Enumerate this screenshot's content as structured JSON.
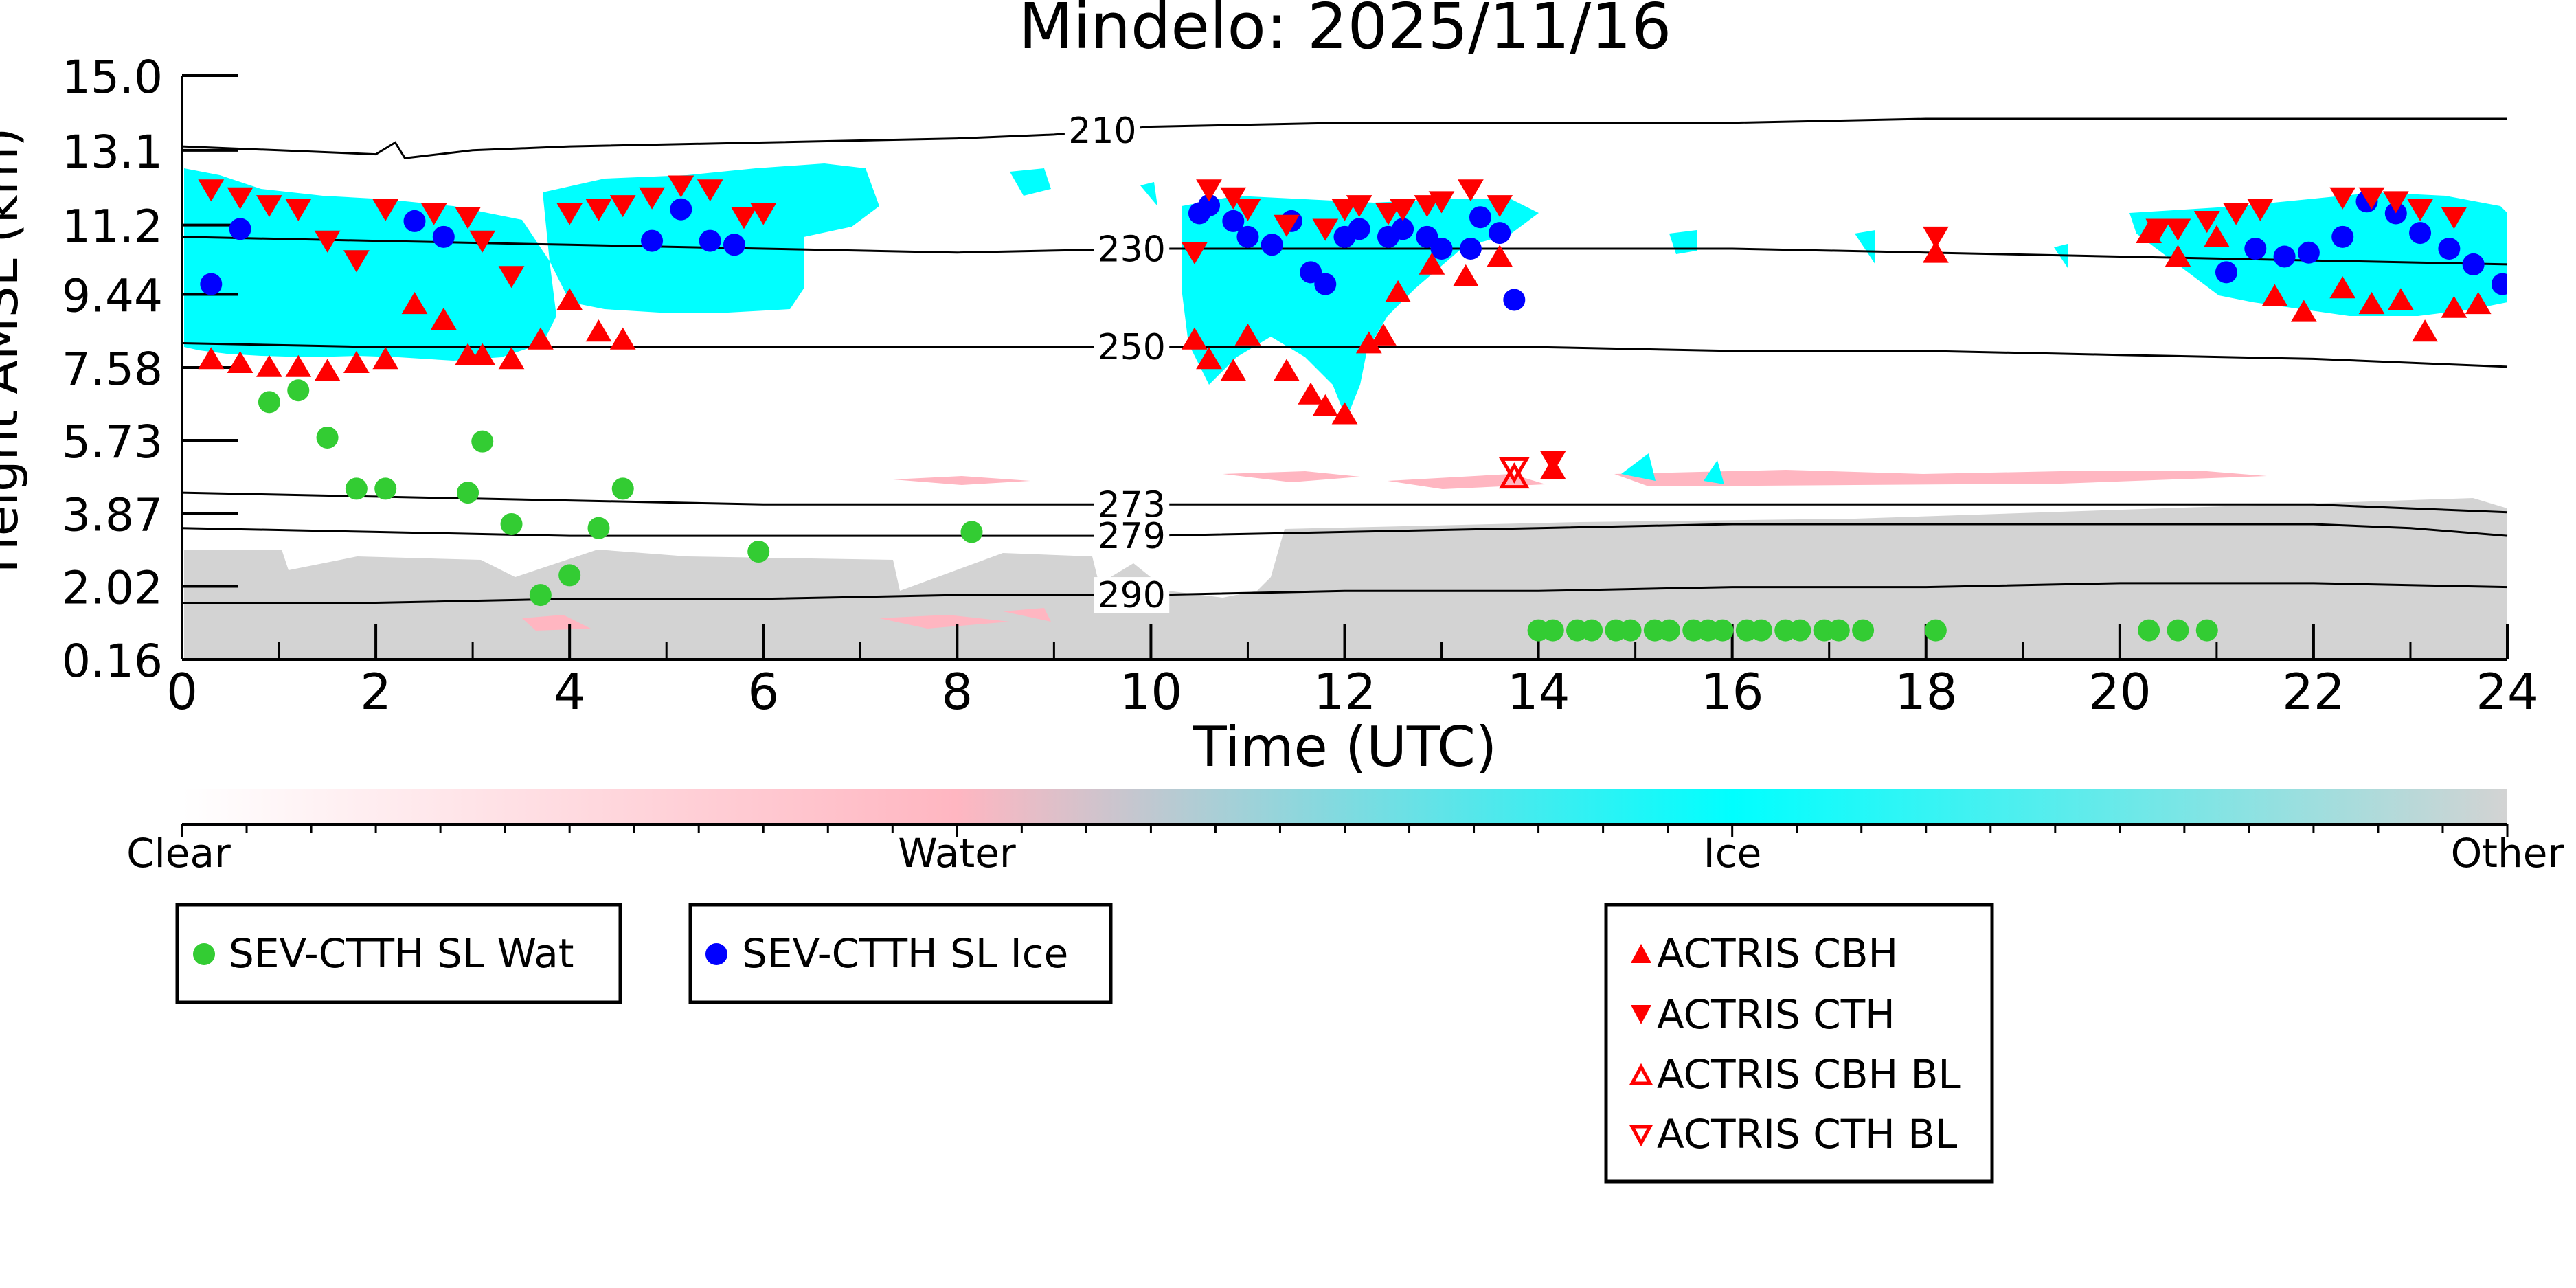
{
  "chart_data": {
    "type": "scatter",
    "title": "Mindelo: 2025/11/16",
    "xlabel": "Time (UTC)",
    "ylabel": "Height AMSL (km)",
    "xlim": [
      0,
      24
    ],
    "ylim": [
      0.16,
      15.0
    ],
    "x_ticks": [
      "0",
      "2",
      "4",
      "6",
      "8",
      "10",
      "12",
      "14",
      "16",
      "18",
      "20",
      "22",
      "24"
    ],
    "y_ticks": [
      "15.0",
      "13.1",
      "11.2",
      "9.44",
      "7.58",
      "5.73",
      "3.87",
      "2.02",
      "0.16"
    ],
    "y_tick_values": [
      15.0,
      13.1,
      11.2,
      9.44,
      7.58,
      5.73,
      3.87,
      2.02,
      0.16
    ],
    "contours": [
      {
        "label": "210",
        "label_x": 9.5,
        "points": [
          [
            0,
            13.2
          ],
          [
            1,
            13.1
          ],
          [
            2,
            13.0
          ],
          [
            2.2,
            13.3
          ],
          [
            2.3,
            12.9
          ],
          [
            3,
            13.1
          ],
          [
            4,
            13.2
          ],
          [
            6,
            13.3
          ],
          [
            8,
            13.4
          ],
          [
            9,
            13.5
          ],
          [
            10,
            13.7
          ],
          [
            12,
            13.8
          ],
          [
            14,
            13.8
          ],
          [
            16,
            13.8
          ],
          [
            18,
            13.9
          ],
          [
            20,
            13.9
          ],
          [
            22,
            13.9
          ],
          [
            24,
            13.9
          ]
        ]
      },
      {
        "label": "230",
        "label_x": 9.8,
        "points": [
          [
            0,
            10.9
          ],
          [
            2,
            10.8
          ],
          [
            4,
            10.7
          ],
          [
            6,
            10.6
          ],
          [
            8,
            10.5
          ],
          [
            10,
            10.6
          ],
          [
            12,
            10.6
          ],
          [
            14,
            10.6
          ],
          [
            16,
            10.6
          ],
          [
            18,
            10.5
          ],
          [
            20,
            10.4
          ],
          [
            22,
            10.3
          ],
          [
            24,
            10.2
          ]
        ]
      },
      {
        "label": "250",
        "label_x": 9.8,
        "points": [
          [
            0,
            8.2
          ],
          [
            2,
            8.1
          ],
          [
            4,
            8.1
          ],
          [
            6,
            8.1
          ],
          [
            8,
            8.1
          ],
          [
            10,
            8.1
          ],
          [
            12,
            8.1
          ],
          [
            14,
            8.1
          ],
          [
            16,
            8.0
          ],
          [
            18,
            8.0
          ],
          [
            20,
            7.9
          ],
          [
            22,
            7.8
          ],
          [
            24,
            7.6
          ]
        ]
      },
      {
        "label": "273",
        "label_x": 9.8,
        "points": [
          [
            0,
            4.4
          ],
          [
            2,
            4.3
          ],
          [
            4,
            4.2
          ],
          [
            6,
            4.1
          ],
          [
            8,
            4.1
          ],
          [
            10,
            4.1
          ],
          [
            12,
            4.1
          ],
          [
            14,
            4.1
          ],
          [
            16,
            4.1
          ],
          [
            18,
            4.1
          ],
          [
            20,
            4.1
          ],
          [
            22,
            4.1
          ],
          [
            23,
            4.0
          ],
          [
            24,
            3.9
          ]
        ]
      },
      {
        "label": "279",
        "label_x": 9.8,
        "points": [
          [
            0,
            3.5
          ],
          [
            2,
            3.4
          ],
          [
            4,
            3.3
          ],
          [
            6,
            3.3
          ],
          [
            8,
            3.3
          ],
          [
            10,
            3.3
          ],
          [
            12,
            3.4
          ],
          [
            14,
            3.5
          ],
          [
            16,
            3.6
          ],
          [
            18,
            3.6
          ],
          [
            20,
            3.6
          ],
          [
            22,
            3.6
          ],
          [
            23,
            3.5
          ],
          [
            24,
            3.3
          ]
        ]
      },
      {
        "label": "290",
        "label_x": 9.8,
        "points": [
          [
            0,
            1.6
          ],
          [
            2,
            1.6
          ],
          [
            4,
            1.7
          ],
          [
            6,
            1.7
          ],
          [
            8,
            1.8
          ],
          [
            10,
            1.8
          ],
          [
            12,
            1.9
          ],
          [
            14,
            1.9
          ],
          [
            16,
            2.0
          ],
          [
            18,
            2.0
          ],
          [
            20,
            2.1
          ],
          [
            22,
            2.1
          ],
          [
            24,
            2.0
          ]
        ]
      }
    ],
    "colorbar": {
      "labels": [
        "Clear",
        "Water",
        "Ice",
        "Other"
      ],
      "colors": [
        "#ffffff",
        "#ffb6c1",
        "#00ffff",
        "#d3d3d3"
      ]
    },
    "legend": [
      {
        "label": "SEV-CTTH SL Wat",
        "marker": "circle",
        "color": "#33cc33"
      },
      {
        "label": "SEV-CTTH SL Ice",
        "marker": "circle",
        "color": "#0000ff"
      },
      {
        "label": "ACTRIS CBH",
        "marker": "triangle-up",
        "color": "#ff0000"
      },
      {
        "label": "ACTRIS CTH",
        "marker": "triangle-down",
        "color": "#ff0000"
      },
      {
        "label": "ACTRIS CBH BL",
        "marker": "triangle-up-open",
        "color": "#ff0000"
      },
      {
        "label": "ACTRIS CTH BL",
        "marker": "triangle-down-open",
        "color": "#ff0000"
      }
    ],
    "series": [
      {
        "name": "SEV-CTTH SL Wat",
        "points": [
          [
            0.9,
            6.7
          ],
          [
            1.2,
            7.0
          ],
          [
            1.5,
            5.8
          ],
          [
            1.8,
            4.5
          ],
          [
            2.1,
            4.5
          ],
          [
            2.95,
            4.4
          ],
          [
            3.1,
            5.7
          ],
          [
            3.4,
            3.6
          ],
          [
            3.7,
            1.8
          ],
          [
            4.0,
            2.3
          ],
          [
            4.3,
            3.5
          ],
          [
            4.55,
            4.5
          ],
          [
            5.95,
            2.9
          ],
          [
            8.15,
            3.4
          ],
          [
            14.0,
            0.9
          ],
          [
            14.15,
            0.9
          ],
          [
            14.4,
            0.9
          ],
          [
            14.55,
            0.9
          ],
          [
            14.8,
            0.9
          ],
          [
            14.95,
            0.9
          ],
          [
            15.2,
            0.9
          ],
          [
            15.35,
            0.9
          ],
          [
            15.6,
            0.9
          ],
          [
            15.75,
            0.9
          ],
          [
            15.9,
            0.9
          ],
          [
            16.15,
            0.9
          ],
          [
            16.3,
            0.9
          ],
          [
            16.55,
            0.9
          ],
          [
            16.7,
            0.9
          ],
          [
            16.95,
            0.9
          ],
          [
            17.1,
            0.9
          ],
          [
            17.35,
            0.9
          ],
          [
            18.1,
            0.9
          ],
          [
            20.3,
            0.9
          ],
          [
            20.6,
            0.9
          ],
          [
            20.9,
            0.9
          ]
        ]
      },
      {
        "name": "SEV-CTTH SL Ice",
        "points": [
          [
            0.3,
            9.7
          ],
          [
            0.6,
            11.1
          ],
          [
            2.4,
            11.3
          ],
          [
            2.7,
            10.9
          ],
          [
            4.85,
            10.8
          ],
          [
            5.15,
            11.6
          ],
          [
            5.45,
            10.8
          ],
          [
            5.7,
            10.7
          ],
          [
            10.5,
            11.5
          ],
          [
            10.6,
            11.7
          ],
          [
            10.85,
            11.3
          ],
          [
            11.0,
            10.9
          ],
          [
            11.25,
            10.7
          ],
          [
            11.45,
            11.3
          ],
          [
            11.65,
            10.0
          ],
          [
            11.8,
            9.7
          ],
          [
            12.0,
            10.9
          ],
          [
            12.15,
            11.1
          ],
          [
            12.45,
            10.9
          ],
          [
            12.6,
            11.1
          ],
          [
            12.85,
            10.9
          ],
          [
            13.0,
            10.6
          ],
          [
            13.3,
            10.6
          ],
          [
            13.4,
            11.4
          ],
          [
            13.6,
            11.0
          ],
          [
            13.75,
            9.3
          ],
          [
            21.1,
            10.0
          ],
          [
            21.4,
            10.6
          ],
          [
            21.7,
            10.4
          ],
          [
            21.95,
            10.5
          ],
          [
            22.3,
            10.9
          ],
          [
            22.55,
            11.8
          ],
          [
            22.85,
            11.5
          ],
          [
            23.1,
            11.0
          ],
          [
            23.4,
            10.6
          ],
          [
            23.65,
            10.2
          ],
          [
            23.95,
            9.7
          ]
        ]
      },
      {
        "name": "ACTRIS CBH",
        "points": [
          [
            0.3,
            7.8
          ],
          [
            0.6,
            7.7
          ],
          [
            0.9,
            7.6
          ],
          [
            1.2,
            7.6
          ],
          [
            1.5,
            7.5
          ],
          [
            1.8,
            7.7
          ],
          [
            2.1,
            7.8
          ],
          [
            2.4,
            9.2
          ],
          [
            2.7,
            8.8
          ],
          [
            2.95,
            7.9
          ],
          [
            3.1,
            7.9
          ],
          [
            3.4,
            7.8
          ],
          [
            3.7,
            8.3
          ],
          [
            4.0,
            9.3
          ],
          [
            4.3,
            8.5
          ],
          [
            4.55,
            8.3
          ],
          [
            10.45,
            8.3
          ],
          [
            10.6,
            7.8
          ],
          [
            10.85,
            7.5
          ],
          [
            11.0,
            8.4
          ],
          [
            11.4,
            7.5
          ],
          [
            11.65,
            6.9
          ],
          [
            11.8,
            6.6
          ],
          [
            12.0,
            6.4
          ],
          [
            12.25,
            8.2
          ],
          [
            12.4,
            8.4
          ],
          [
            12.55,
            9.5
          ],
          [
            12.9,
            10.2
          ],
          [
            13.25,
            9.9
          ],
          [
            13.6,
            10.4
          ],
          [
            14.15,
            5.0
          ],
          [
            18.1,
            10.5
          ],
          [
            20.3,
            11.0
          ],
          [
            20.6,
            10.4
          ],
          [
            21.0,
            10.9
          ],
          [
            21.6,
            9.4
          ],
          [
            21.9,
            9.0
          ],
          [
            22.3,
            9.6
          ],
          [
            22.6,
            9.2
          ],
          [
            22.9,
            9.3
          ],
          [
            23.15,
            8.5
          ],
          [
            23.45,
            9.1
          ],
          [
            23.7,
            9.2
          ]
        ]
      },
      {
        "name": "ACTRIS CTH",
        "points": [
          [
            0.3,
            12.1
          ],
          [
            0.6,
            11.9
          ],
          [
            0.9,
            11.7
          ],
          [
            1.2,
            11.6
          ],
          [
            1.5,
            10.8
          ],
          [
            1.8,
            10.3
          ],
          [
            2.1,
            11.6
          ],
          [
            2.6,
            11.5
          ],
          [
            2.95,
            11.4
          ],
          [
            3.1,
            10.8
          ],
          [
            3.4,
            9.9
          ],
          [
            4.0,
            11.5
          ],
          [
            4.3,
            11.6
          ],
          [
            4.55,
            11.7
          ],
          [
            4.85,
            11.9
          ],
          [
            5.15,
            12.2
          ],
          [
            5.45,
            12.1
          ],
          [
            5.8,
            11.4
          ],
          [
            6.0,
            11.5
          ],
          [
            10.45,
            10.5
          ],
          [
            10.6,
            12.1
          ],
          [
            10.85,
            11.9
          ],
          [
            11.0,
            11.6
          ],
          [
            11.4,
            11.2
          ],
          [
            11.8,
            11.1
          ],
          [
            12.0,
            11.6
          ],
          [
            12.15,
            11.7
          ],
          [
            12.45,
            11.5
          ],
          [
            12.6,
            11.6
          ],
          [
            12.85,
            11.7
          ],
          [
            13.0,
            11.8
          ],
          [
            13.3,
            12.1
          ],
          [
            13.6,
            11.7
          ],
          [
            14.15,
            5.2
          ],
          [
            18.1,
            10.9
          ],
          [
            20.4,
            11.1
          ],
          [
            20.6,
            11.1
          ],
          [
            20.9,
            11.3
          ],
          [
            21.2,
            11.5
          ],
          [
            21.45,
            11.6
          ],
          [
            22.3,
            11.9
          ],
          [
            22.6,
            11.9
          ],
          [
            22.85,
            11.8
          ],
          [
            23.1,
            11.6
          ],
          [
            23.45,
            11.4
          ]
        ]
      },
      {
        "name": "ACTRIS CBH BL",
        "points": [
          [
            13.75,
            4.8
          ]
        ]
      },
      {
        "name": "ACTRIS CTH BL",
        "points": [
          [
            13.75,
            5.0
          ]
        ]
      }
    ]
  }
}
